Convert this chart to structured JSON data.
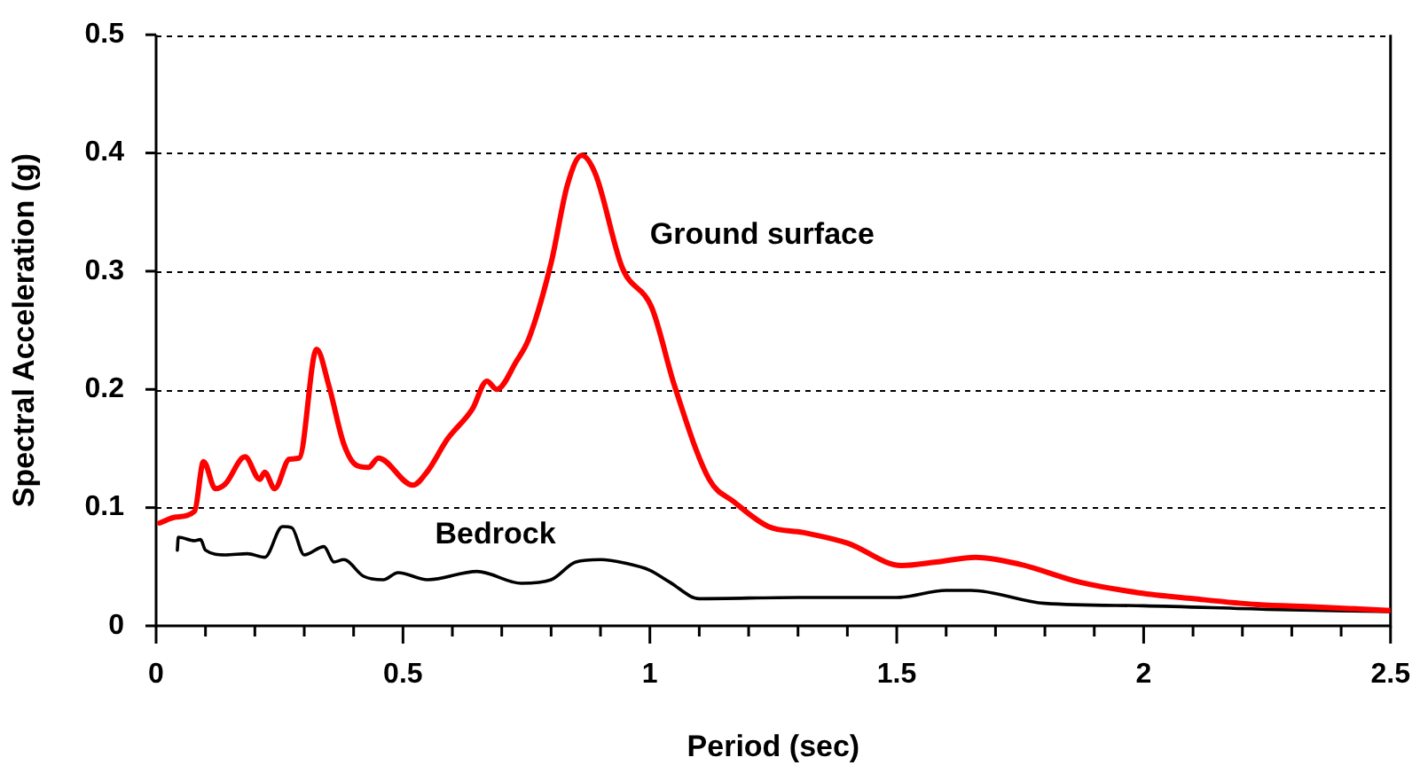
{
  "chart_data": {
    "type": "line",
    "xlabel": "Period (sec)",
    "ylabel": "Spectral Acceleration (g)",
    "xlim": [
      0,
      2.5
    ],
    "ylim": [
      0,
      0.5
    ],
    "xticks": [
      0,
      {
        "value": 0.1,
        "label": null
      },
      {
        "value": 0.2,
        "label": null
      },
      {
        "value": 0.3,
        "label": null
      },
      {
        "value": 0.4,
        "label": null
      },
      {
        "value": 0.5,
        "label": "0.5"
      },
      {
        "value": 0.6,
        "label": null
      },
      {
        "value": 0.7,
        "label": null
      },
      {
        "value": 0.8,
        "label": null
      },
      {
        "value": 0.9,
        "label": null
      },
      1,
      {
        "value": 1.1,
        "label": null
      },
      {
        "value": 1.2,
        "label": null
      },
      {
        "value": 1.3,
        "label": null
      },
      {
        "value": 1.4,
        "label": null
      },
      {
        "value": 1.5,
        "label": "1.5"
      },
      {
        "value": 1.6,
        "label": null
      },
      {
        "value": 1.7,
        "label": null
      },
      {
        "value": 1.8,
        "label": null
      },
      {
        "value": 1.9,
        "label": null
      },
      2,
      {
        "value": 2.1,
        "label": null
      },
      {
        "value": 2.2,
        "label": null
      },
      {
        "value": 2.3,
        "label": null
      },
      {
        "value": 2.4,
        "label": null
      },
      {
        "value": 2.5,
        "label": "2.5"
      }
    ],
    "yticks": [
      0,
      {
        "value": 0.1,
        "label": "0.1"
      },
      {
        "value": 0.2,
        "label": "0.2"
      },
      {
        "value": 0.3,
        "label": "0.3"
      },
      {
        "value": 0.4,
        "label": "0.4"
      },
      {
        "value": 0.5,
        "label": "0.5"
      }
    ],
    "grid": "y",
    "legend": false,
    "marker": "none",
    "line_style": "solid",
    "series": [
      {
        "name": "Ground surface",
        "color": "#ff0000",
        "x": [
          0.007,
          0.04,
          0.078,
          0.096,
          0.12,
          0.14,
          0.18,
          0.21,
          0.22,
          0.24,
          0.27,
          0.29,
          0.325,
          0.35,
          0.38,
          0.405,
          0.43,
          0.45,
          0.52,
          0.55,
          0.59,
          0.64,
          0.67,
          0.69,
          0.73,
          0.755,
          0.8,
          0.833,
          0.862,
          0.89,
          0.944,
          1.004,
          1.05,
          1.12,
          1.17,
          1.24,
          1.31,
          1.4,
          1.51,
          1.58,
          1.66,
          1.75,
          1.87,
          1.99,
          2.1,
          2.23,
          2.35,
          2.5
        ],
        "values": [
          0.087,
          0.092,
          0.097,
          0.139,
          0.116,
          0.12,
          0.143,
          0.124,
          0.13,
          0.116,
          0.141,
          0.142,
          0.234,
          0.203,
          0.154,
          0.136,
          0.134,
          0.142,
          0.119,
          0.131,
          0.158,
          0.183,
          0.207,
          0.2,
          0.224,
          0.243,
          0.307,
          0.373,
          0.398,
          0.382,
          0.303,
          0.269,
          0.203,
          0.124,
          0.105,
          0.084,
          0.079,
          0.07,
          0.051,
          0.054,
          0.058,
          0.052,
          0.037,
          0.028,
          0.023,
          0.018,
          0.016,
          0.013
        ]
      },
      {
        "name": "Bedrock",
        "color": "#000000",
        "x": [
          0.043,
          0.045,
          0.078,
          0.09,
          0.1,
          0.14,
          0.185,
          0.22,
          0.256,
          0.275,
          0.3,
          0.34,
          0.36,
          0.38,
          0.42,
          0.46,
          0.49,
          0.55,
          0.65,
          0.74,
          0.8,
          0.85,
          0.9,
          0.95,
          1.0,
          1.04,
          1.1,
          1.3,
          1.5,
          1.6,
          1.65,
          1.8,
          2.0,
          2.25,
          2.5
        ],
        "values": [
          0.064,
          0.075,
          0.072,
          0.073,
          0.064,
          0.06,
          0.061,
          0.058,
          0.084,
          0.083,
          0.06,
          0.067,
          0.054,
          0.056,
          0.042,
          0.039,
          0.045,
          0.039,
          0.046,
          0.036,
          0.039,
          0.054,
          0.056,
          0.053,
          0.047,
          0.037,
          0.023,
          0.024,
          0.024,
          0.03,
          0.03,
          0.019,
          0.017,
          0.014,
          0.012
        ]
      }
    ]
  }
}
